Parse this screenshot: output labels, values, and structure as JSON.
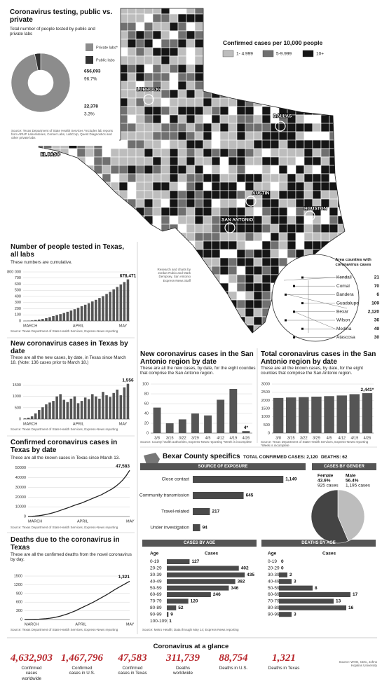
{
  "map": {
    "title": "Confirmed cases per 10,000 people",
    "legend": [
      "1- 4.999",
      "5-9.999",
      "10+"
    ],
    "colors": [
      "#bdbdbd",
      "#707070",
      "#151515"
    ],
    "cities": [
      "LUBBOCK",
      "DALLAS",
      "EL PASO",
      "AUSTIN",
      "SAN ANTONIO",
      "HOUSTON"
    ],
    "credit": "Research and charts by Jordan Rubio and Mark Dempsey, San Antonio Express-News Staff",
    "inset": {
      "title": "Area counties with coronavirus cases",
      "names": [
        "Kendall",
        "Comal",
        "Bandera",
        "Guadalupe",
        "Bexar",
        "Wilson",
        "Medina",
        "Atascosa"
      ],
      "values": [
        21,
        70,
        6,
        109,
        2120,
        36,
        49,
        30
      ],
      "value_labels": [
        null,
        null,
        null,
        null,
        "2,120",
        null,
        null,
        null
      ]
    }
  },
  "chart_data": [
    {
      "type": "pie",
      "title": "Coronavirus testing, public vs. private",
      "subtitle": "Total number of people tested by public and private labs",
      "categories": [
        "Private labs*",
        "Public labs"
      ],
      "values": [
        656093,
        22378
      ],
      "value_labels": [
        "656,093",
        "22,378"
      ],
      "percent_labels": [
        "96.7%",
        "3.3%"
      ],
      "colors": [
        "#8c8c8c",
        "#333333"
      ],
      "source": "Source: Texas Department of State Health Services *Includes lab reports from ARUP Laboratories, Cerner Labs, LabCorp, Quest Diagnostics and other private labs"
    },
    {
      "type": "bar",
      "title": "Number of people tested in Texas, all labs",
      "subtitle": "These numbers are cumulative.",
      "categories": [
        "MARCH",
        null,
        null,
        null,
        null,
        null,
        null,
        null,
        null,
        null,
        null,
        null,
        null,
        null,
        "APRIL",
        null,
        null,
        null,
        null,
        null,
        null,
        null,
        null,
        null,
        null,
        null,
        null,
        "MAY",
        null,
        null
      ],
      "values": [
        3000,
        5000,
        9000,
        15000,
        23000,
        33000,
        46000,
        62000,
        80000,
        96000,
        112000,
        130000,
        150000,
        170000,
        192000,
        215000,
        240000,
        265000,
        290000,
        318000,
        345000,
        375000,
        405000,
        440000,
        475000,
        515000,
        555000,
        595000,
        635000,
        678471
      ],
      "value_labels": [
        null,
        null,
        null,
        null,
        null,
        null,
        null,
        null,
        null,
        null,
        null,
        null,
        null,
        null,
        null,
        null,
        null,
        null,
        null,
        null,
        null,
        null,
        null,
        null,
        null,
        null,
        null,
        null,
        null,
        "678,471"
      ],
      "color": "#555555",
      "ylim": [
        0,
        800000
      ],
      "yticks": [
        0,
        {
          "value": 100000,
          "label": "100"
        },
        {
          "value": 200000,
          "label": "200"
        },
        {
          "value": 300000,
          "label": "300"
        },
        {
          "value": 400000,
          "label": "400"
        },
        {
          "value": 500000,
          "label": "500"
        },
        {
          "value": 600000,
          "label": "600"
        },
        {
          "value": 700000,
          "label": "700"
        },
        {
          "value": 800000,
          "label": "800 000"
        }
      ],
      "grid": true,
      "source": "Source: Texas Department of State Health Services, Express-News reporting"
    },
    {
      "type": "bar",
      "title": "New coronavirus cases in Texas by date",
      "subtitle": "These are all the new cases, by date, in Texas since March 18. (Note: 136 cases prior to March 18.)",
      "categories": [
        "MARCH",
        null,
        null,
        null,
        null,
        null,
        null,
        null,
        null,
        null,
        null,
        null,
        null,
        null,
        "APRIL",
        null,
        null,
        null,
        null,
        null,
        null,
        null,
        null,
        null,
        null,
        null,
        null,
        "MAY",
        null,
        null
      ],
      "values": [
        30,
        60,
        120,
        250,
        400,
        520,
        650,
        730,
        800,
        1000,
        1100,
        850,
        750,
        900,
        1000,
        700,
        800,
        950,
        880,
        1100,
        1000,
        900,
        1200,
        1050,
        980,
        1150,
        1300,
        1050,
        1400,
        1556
      ],
      "value_labels": [
        null,
        null,
        null,
        null,
        null,
        null,
        null,
        null,
        null,
        null,
        null,
        null,
        null,
        null,
        null,
        null,
        null,
        null,
        null,
        null,
        null,
        null,
        null,
        null,
        null,
        null,
        null,
        null,
        null,
        "1,556"
      ],
      "color": "#555555",
      "ylim": [
        0,
        1700
      ],
      "yticks": [
        0,
        500,
        1000,
        1500
      ],
      "grid": true,
      "source": "Source: Texas Department of State Health Services, Express-News reporting"
    },
    {
      "type": "bar",
      "title": "New coronavirus cases in the San Antonio region by date",
      "subtitle": "These are all the new cases, by date, for the eight counties that comprise the San Antonio region.",
      "categories": [
        "3/8",
        "3/15",
        "3/22",
        "3/29",
        "4/5",
        "4/12",
        "4/19",
        "4/26"
      ],
      "values": [
        52,
        20,
        28,
        40,
        36,
        68,
        90,
        4
      ],
      "value_labels": [
        null,
        null,
        null,
        null,
        null,
        null,
        null,
        "4*"
      ],
      "color": "#555555",
      "ylim": [
        0,
        100
      ],
      "yticks": [
        0,
        20,
        40,
        60,
        80,
        100
      ],
      "grid": true,
      "source": "Source: County health authorities, Express-News reporting *Week is incomplete"
    },
    {
      "type": "bar",
      "title": "Total coronavirus cases in the San Antonio region by date",
      "subtitle": "These are all the known cases, by date, for the eight counties that comprise the San Antonio region.",
      "categories": [
        "3/8",
        "3/15",
        "3/22",
        "3/29",
        "4/5",
        "4/12",
        "4/19",
        "4/26"
      ],
      "values": [
        2150,
        2180,
        2200,
        2230,
        2260,
        2300,
        2380,
        2441
      ],
      "value_labels": [
        null,
        null,
        null,
        null,
        null,
        null,
        null,
        "2,441*"
      ],
      "color": "#555555",
      "ylim": [
        0,
        3000
      ],
      "yticks": [
        0,
        500,
        1000,
        1500,
        2000,
        2500,
        3000
      ],
      "grid": true,
      "source": "Source: Texas Department of State Health Services, Express-News reporting *Week is incomplete"
    },
    {
      "type": "line",
      "title": "Confirmed coronavirus cases in Texas by date",
      "subtitle": "These are all the known cases in Texas since March 13.",
      "categories": [
        "MARCH",
        null,
        null,
        null,
        null,
        null,
        null,
        null,
        null,
        null,
        null,
        null,
        null,
        null,
        "APRIL",
        null,
        null,
        null,
        null,
        null,
        null,
        null,
        null,
        null,
        null,
        null,
        null,
        null,
        "MAY",
        null
      ],
      "values": [
        100,
        200,
        400,
        800,
        1300,
        2000,
        2800,
        3700,
        4800,
        6000,
        7300,
        8500,
        9800,
        11200,
        12500,
        13500,
        15000,
        16500,
        18000,
        19500,
        21000,
        22500,
        24500,
        26500,
        28500,
        31000,
        34000,
        37500,
        42000,
        47583
      ],
      "value_labels": [
        null,
        null,
        null,
        null,
        null,
        null,
        null,
        null,
        null,
        null,
        null,
        null,
        null,
        null,
        null,
        null,
        null,
        null,
        null,
        null,
        null,
        null,
        null,
        null,
        null,
        null,
        null,
        null,
        null,
        "47,583"
      ],
      "color": "#222222",
      "ylim": [
        0,
        52000
      ],
      "yticks": [
        0,
        10000,
        20000,
        30000,
        40000,
        50000
      ],
      "grid": true,
      "source": "Source: Texas Department of State Health Services, Express-News reporting"
    },
    {
      "type": "line",
      "title": "Deaths due to the coronavirus in Texas",
      "subtitle": "These are all the confirmed deaths from the novel coronavirus by day.",
      "categories": [
        "MARCH",
        null,
        null,
        null,
        null,
        null,
        null,
        null,
        null,
        null,
        null,
        null,
        null,
        null,
        "APRIL",
        null,
        null,
        null,
        null,
        null,
        null,
        null,
        null,
        null,
        null,
        null,
        null,
        null,
        "MAY",
        null
      ],
      "values": [
        1,
        2,
        4,
        7,
        12,
        20,
        30,
        45,
        65,
        90,
        120,
        160,
        200,
        250,
        300,
        360,
        420,
        480,
        540,
        600,
        670,
        740,
        810,
        880,
        960,
        1040,
        1110,
        1180,
        1250,
        1321
      ],
      "value_labels": [
        null,
        null,
        null,
        null,
        null,
        null,
        null,
        null,
        null,
        null,
        null,
        null,
        null,
        null,
        null,
        null,
        null,
        null,
        null,
        null,
        null,
        null,
        null,
        null,
        null,
        null,
        null,
        null,
        null,
        "1,321"
      ],
      "color": "#222222",
      "ylim": [
        0,
        1500
      ],
      "yticks": [
        0,
        300,
        600,
        900,
        1200,
        1500
      ],
      "grid": true,
      "source": "Source: Texas Department of State Health Services, Express-News reporting"
    },
    {
      "type": "hbar",
      "title": "SOURCE OF EXPOSURE",
      "categories": [
        "Close contact",
        "Community transmission",
        "Travel-related",
        "Under investigation"
      ],
      "values": [
        1149,
        645,
        217,
        94
      ],
      "value_labels": [
        "1,149",
        "645",
        "217",
        "94"
      ],
      "color": "#4a4a4a",
      "xlim": [
        0,
        1200
      ]
    },
    {
      "type": "pie",
      "title": "CASES BY GENDER",
      "categories": [
        "Female",
        "Male"
      ],
      "values": [
        43.6,
        56.4
      ],
      "value_labels": [
        "43.6%",
        "56.4%"
      ],
      "count_labels": [
        "925 cases",
        "1,195 cases"
      ],
      "colors": [
        "#bdbdbd",
        "#444444"
      ]
    },
    {
      "type": "hbar",
      "title": "CASES BY AGE",
      "column_labels": [
        "Age",
        "Cases"
      ],
      "categories": [
        "0-19",
        "20-29",
        "30-39",
        "40-49",
        "50-59",
        "60-69",
        "70-79",
        "80-89",
        "90-99",
        "100-109"
      ],
      "values": [
        127,
        402,
        435,
        382,
        346,
        246,
        120,
        52,
        9,
        1
      ],
      "color": "#4a4a4a",
      "xlim": [
        0,
        450
      ]
    },
    {
      "type": "hbar",
      "title": "DEATHS BY AGE",
      "column_labels": [
        "Age",
        "Cases"
      ],
      "categories": [
        "0-19",
        "20-29",
        "30-39",
        "40-49",
        "50-59",
        "60-69",
        "70-79",
        "80-89",
        "90-99"
      ],
      "values": [
        0,
        0,
        2,
        3,
        8,
        17,
        13,
        16,
        3
      ],
      "color": "#4a4a4a",
      "xlim": [
        0,
        20
      ]
    }
  ],
  "bexar": {
    "title": "Bexar County specifics",
    "total": "TOTAL CONFIRMED CASES: 2,120",
    "deaths": "DEATHS: 62",
    "source": "Source: Metro Health; Data through May 14; Express-News reporting"
  },
  "glance": {
    "title": "Coronavirus at a glance",
    "items": [
      {
        "value": "4,632,903",
        "caption": "Confirmed cases worldwide"
      },
      {
        "value": "1,467,796",
        "caption": "Confirmed cases in U.S."
      },
      {
        "value": "47,583",
        "caption": "Confirmed cases in Texas"
      },
      {
        "value": "311,739",
        "caption": "Deaths worldwide"
      },
      {
        "value": "88,754",
        "caption": "Deaths in U.S."
      },
      {
        "value": "1,321",
        "caption": "Deaths in Texas"
      }
    ],
    "source": "Source: WHO, CDC, Johns Hopkins University"
  }
}
